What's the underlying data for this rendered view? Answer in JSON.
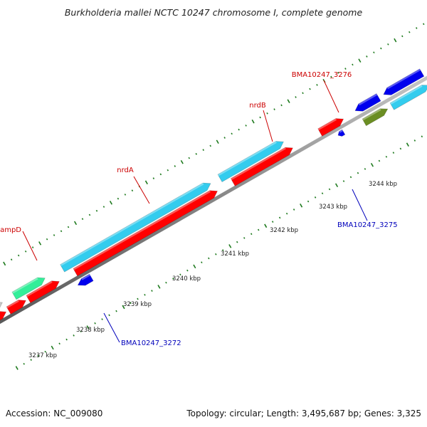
{
  "title": "Burkholderia mallei NCTC 10247 chromosome I, complete genome",
  "accession_text": "Accession: NC_009080",
  "topology_text": "Topology: circular; Length: 3,495,687 bp; Genes: 3,325",
  "colors": {
    "backbone": "#8c8c8c",
    "tick": "#1e7a1e",
    "gene_forward": "#ff0000",
    "gene_reverse": "#0000ee",
    "gene_cyan": "#33ccee",
    "gene_green": "#33ee99",
    "gene_olive": "#6b8e23",
    "gene_gray": "#c8c8c8",
    "label_forward": "#cc0000",
    "label_reverse": "#0000bb"
  },
  "tick_labels": [
    "3237 kbp",
    "3238 kbp",
    "3239 kbp",
    "3240 kbp",
    "3241 kbp",
    "3242 kbp",
    "3243 kbp",
    "3244 kbp"
  ],
  "gene_labels": [
    {
      "text": "ampD",
      "strand": "forward"
    },
    {
      "text": "nrdA",
      "strand": "forward"
    },
    {
      "text": "nrdB",
      "strand": "forward"
    },
    {
      "text": "BMA10247_3276",
      "strand": "forward"
    },
    {
      "text": "BMA10247_3272",
      "strand": "reverse"
    },
    {
      "text": "BMA10247_3275",
      "strand": "reverse"
    }
  ]
}
